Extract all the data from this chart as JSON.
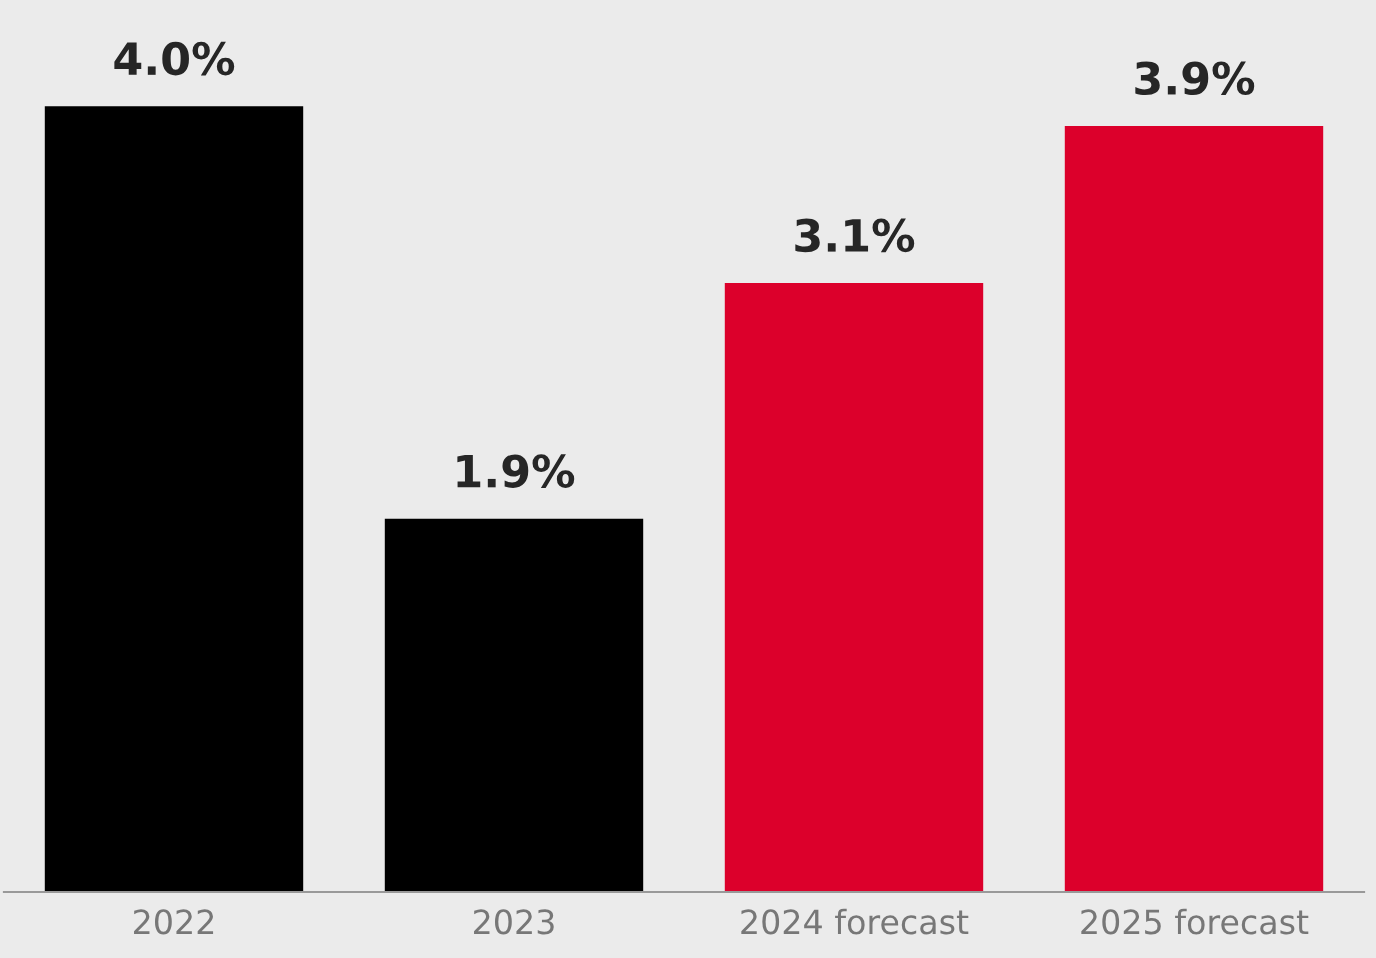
{
  "chart_data": {
    "type": "bar",
    "categories": [
      "2022",
      "2023",
      "2024 forecast",
      "2025 forecast"
    ],
    "values": [
      4.0,
      1.9,
      3.1,
      3.9
    ],
    "colors": [
      "#000000",
      "#000000",
      "#dc002b",
      "#dc002b"
    ],
    "value_labels": [
      "4.0%",
      "1.9%",
      "3.1%",
      "3.9%"
    ]
  }
}
